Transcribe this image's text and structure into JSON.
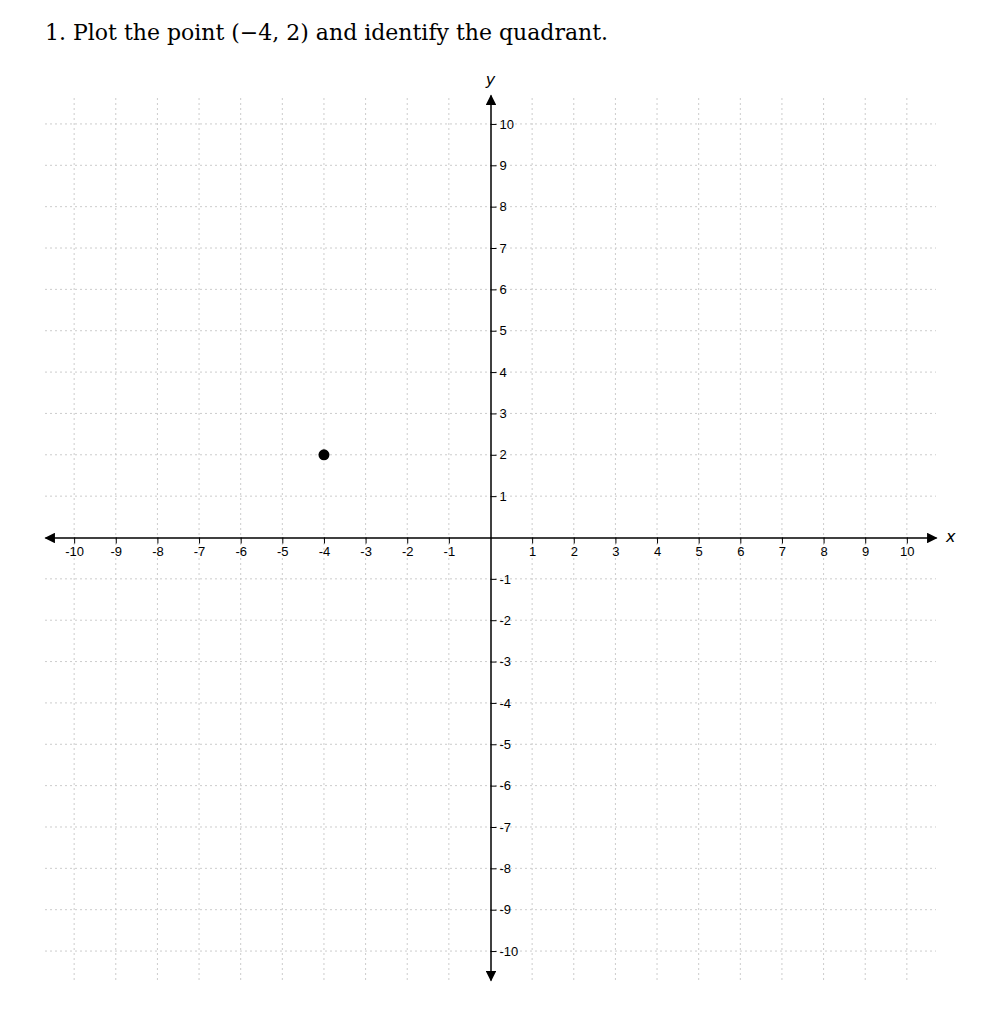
{
  "chart_data": {
    "type": "scatter",
    "title": "1.   Plot the point (−4, 2) and identify the quadrant.",
    "xlabel": "x",
    "ylabel": "y",
    "x": [
      -4
    ],
    "values": [
      2
    ],
    "color": "#000000",
    "xlim": [
      -10.7,
      10.7
    ],
    "ylim": [
      -10.7,
      10.7
    ],
    "xticks": [
      -10,
      -9,
      -8,
      -7,
      -6,
      -5,
      -4,
      -3,
      -2,
      -1,
      1,
      2,
      3,
      4,
      5,
      6,
      7,
      8,
      9,
      10
    ],
    "yticks": [
      -10,
      -9,
      -8,
      -7,
      -6,
      -5,
      -4,
      -3,
      -2,
      -1,
      1,
      2,
      3,
      4,
      5,
      6,
      7,
      8,
      9,
      10
    ],
    "grid": true
  }
}
